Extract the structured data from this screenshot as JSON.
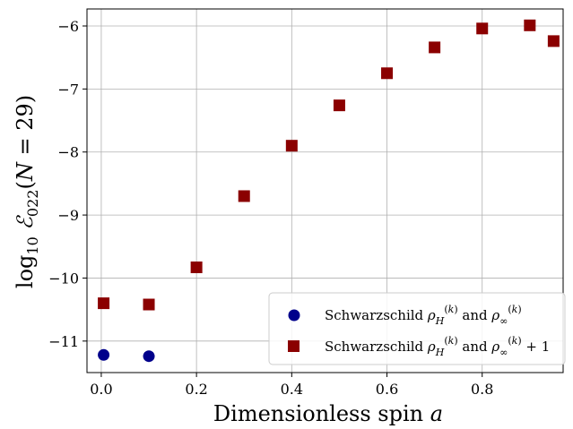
{
  "chart_data": {
    "type": "scatter",
    "xlabel": "Dimensionless spin a",
    "ylabel": "log10 ℰ022(N = 29)",
    "xlim": [
      -0.03,
      0.97
    ],
    "ylim": [
      -11.5,
      -5.73
    ],
    "x_ticks": [
      0.0,
      0.2,
      0.4,
      0.6,
      0.8
    ],
    "x_tick_labels": [
      "0.0",
      "0.2",
      "0.4",
      "0.6",
      "0.8"
    ],
    "y_ticks": [
      -11,
      -10,
      -9,
      -8,
      -7,
      -6
    ],
    "y_tick_labels": [
      "−11",
      "−10",
      "−9",
      "−8",
      "−7",
      "−6"
    ],
    "grid": true,
    "legend_position": "lower-right",
    "series": [
      {
        "name": "Schwarzschild ρH(k) and ρ∞(k)",
        "marker": "circle",
        "color": "#00008b",
        "x": [
          0.005,
          0.1
        ],
        "y": [
          -11.22,
          -11.24
        ]
      },
      {
        "name": "Schwarzschild ρH(k) and ρ∞(k) + 1",
        "marker": "square",
        "color": "#8b0000",
        "x": [
          0.005,
          0.1,
          0.2,
          0.3,
          0.4,
          0.5,
          0.6,
          0.7,
          0.8,
          0.9,
          0.95
        ],
        "y": [
          -10.4,
          -10.42,
          -9.83,
          -8.7,
          -7.9,
          -7.26,
          -6.75,
          -6.34,
          -6.04,
          -5.99,
          -6.24
        ]
      }
    ]
  }
}
